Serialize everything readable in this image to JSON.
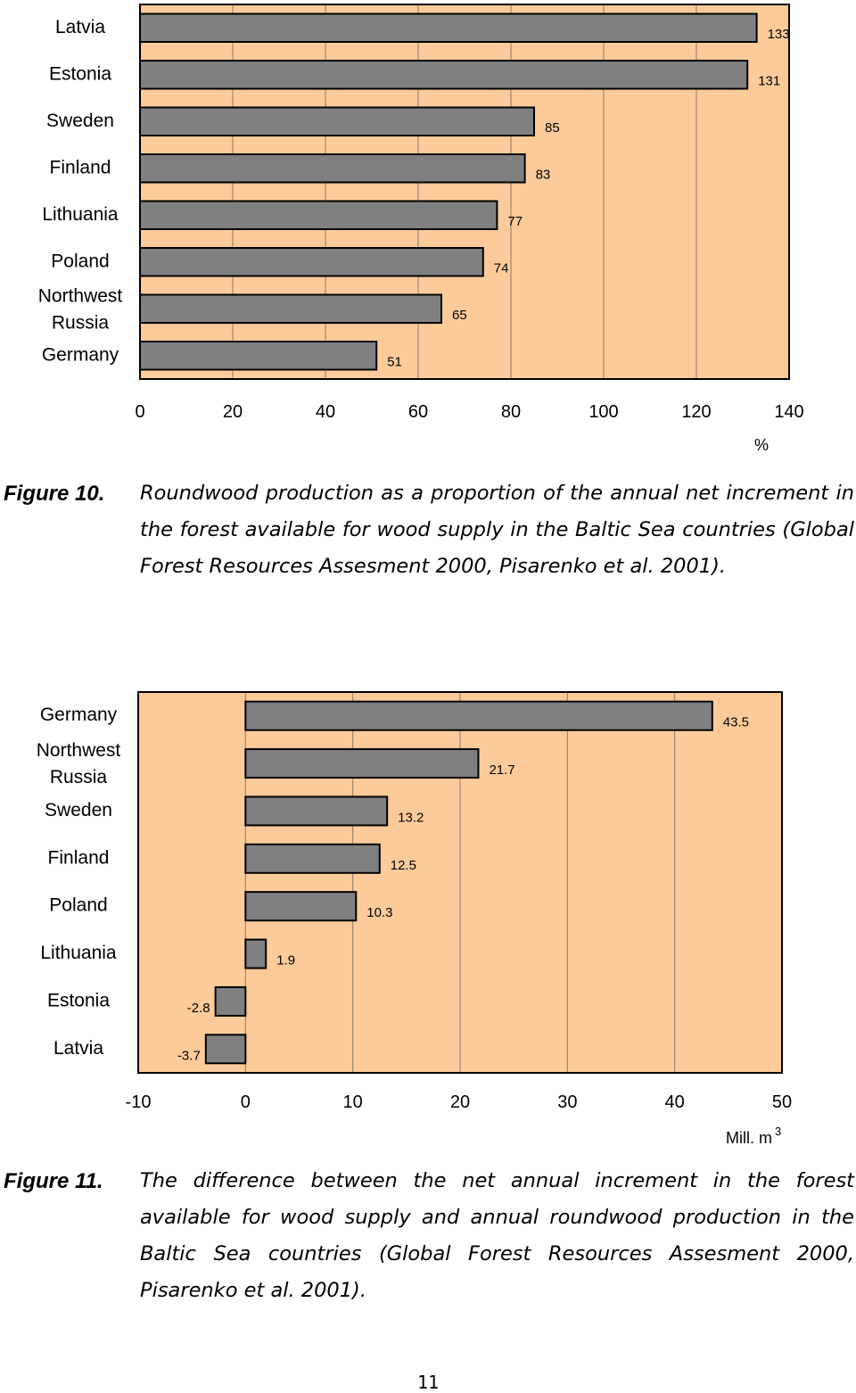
{
  "chart_data": [
    {
      "type": "bar",
      "orientation": "horizontal",
      "categories": [
        "Latvia",
        "Estonia",
        "Sweden",
        "Finland",
        "Lithuania",
        "Poland",
        "Northwest Russia",
        "Germany"
      ],
      "values": [
        133,
        131,
        85,
        83,
        77,
        74,
        65,
        51
      ],
      "data_labels": [
        "133",
        "131",
        "85",
        "83",
        "77",
        "74",
        "65",
        "51"
      ],
      "xlim": [
        0,
        140
      ],
      "xticks": [
        "0",
        "20",
        "40",
        "60",
        "80",
        "100",
        "120",
        "140"
      ],
      "xticks_values": [
        0,
        20,
        40,
        60,
        80,
        100,
        120,
        140
      ],
      "xlabel": "%",
      "grid": "vertical",
      "legend": "none",
      "colors": {
        "plot_bg": "#fccb99",
        "bar": "#808080",
        "grid": "#8c7a66"
      }
    },
    {
      "type": "bar",
      "orientation": "horizontal",
      "categories": [
        "Germany",
        "Northwest Russia",
        "Sweden",
        "Finland",
        "Poland",
        "Lithuania",
        "Estonia",
        "Latvia"
      ],
      "values": [
        43.5,
        21.7,
        13.2,
        12.5,
        10.3,
        1.9,
        -2.8,
        -3.7
      ],
      "data_labels": [
        "43.5",
        "21.7",
        "13.2",
        "12.5",
        "10.3",
        "1.9",
        "-2.8",
        "-3.7"
      ],
      "xlim": [
        -10,
        50
      ],
      "xticks": [
        "-10",
        "0",
        "10",
        "20",
        "30",
        "40",
        "50"
      ],
      "xticks_values": [
        -10,
        0,
        10,
        20,
        30,
        40,
        50
      ],
      "xlabel": "Mill. m",
      "xlabel_sup": "3",
      "grid": "vertical",
      "legend": "none",
      "colors": {
        "plot_bg": "#fccb99",
        "bar": "#808080",
        "grid": "#8c7a66"
      }
    }
  ],
  "captions": [
    {
      "label": "Figure 10.",
      "text": "Roundwood production as a proportion of the annual net increment in the forest available for wood supply in the Baltic Sea countries (Global Forest Resources Assesment 2000, Pisarenko et al. 2001)."
    },
    {
      "label": "Figure 11.",
      "text": "The difference between the net annual increment in the forest available for wood supply and annual roundwood production in the Baltic Sea countries (Global Forest Resources Assesment 2000, Pisarenko et al. 2001)."
    }
  ],
  "page_number": "11"
}
